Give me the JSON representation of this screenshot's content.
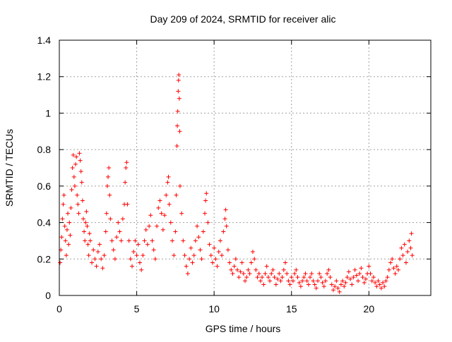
{
  "chart_data": {
    "type": "scatter",
    "title": "Day 209 of 2024, SRMTID for receiver alic",
    "xlabel": "GPS time / hours",
    "ylabel": "SRMTID / TECUs",
    "xlim": [
      0,
      24
    ],
    "ylim": [
      0,
      1.4
    ],
    "grid": true,
    "marker": "+",
    "marker_color": "#ff0000",
    "x_ticks": [
      0,
      5,
      10,
      15,
      20
    ],
    "x_tick_labels": [
      "0",
      "5",
      "10",
      "15",
      "20"
    ],
    "y_ticks": [
      0,
      0.2,
      0.4,
      0.6,
      0.8,
      1.0,
      1.2,
      1.4
    ],
    "y_tick_labels": [
      "0",
      "0.2",
      "0.4",
      "0.6",
      "0.8",
      "1",
      "1.2",
      "1.4"
    ],
    "series": [
      {
        "name": "SRMTID",
        "points": [
          [
            0.05,
            0.18
          ],
          [
            0.1,
            0.25
          ],
          [
            0.15,
            0.32
          ],
          [
            0.2,
            0.42
          ],
          [
            0.25,
            0.5
          ],
          [
            0.3,
            0.55
          ],
          [
            0.35,
            0.38
          ],
          [
            0.4,
            0.3
          ],
          [
            0.45,
            0.22
          ],
          [
            0.5,
            0.36
          ],
          [
            0.55,
            0.45
          ],
          [
            0.6,
            0.28
          ],
          [
            0.65,
            0.4
          ],
          [
            0.7,
            0.33
          ],
          [
            0.75,
            0.48
          ],
          [
            0.8,
            0.58
          ],
          [
            0.85,
            0.7
          ],
          [
            0.9,
            0.77
          ],
          [
            0.95,
            0.65
          ],
          [
            1.0,
            0.6
          ],
          [
            1.05,
            0.72
          ],
          [
            1.1,
            0.76
          ],
          [
            1.15,
            0.55
          ],
          [
            1.2,
            0.5
          ],
          [
            1.25,
            0.45
          ],
          [
            1.3,
            0.78
          ],
          [
            1.35,
            0.74
          ],
          [
            1.4,
            0.68
          ],
          [
            1.45,
            0.62
          ],
          [
            1.5,
            0.52
          ],
          [
            1.55,
            0.42
          ],
          [
            1.6,
            0.35
          ],
          [
            1.65,
            0.3
          ],
          [
            1.7,
            0.4
          ],
          [
            1.75,
            0.46
          ],
          [
            1.8,
            0.38
          ],
          [
            1.85,
            0.28
          ],
          [
            1.9,
            0.22
          ],
          [
            1.95,
            0.34
          ],
          [
            2.0,
            0.3
          ],
          [
            2.1,
            0.18
          ],
          [
            2.2,
            0.25
          ],
          [
            2.3,
            0.2
          ],
          [
            2.4,
            0.16
          ],
          [
            2.5,
            0.24
          ],
          [
            2.6,
            0.28
          ],
          [
            2.7,
            0.2
          ],
          [
            2.8,
            0.15
          ],
          [
            2.9,
            0.22
          ],
          [
            3.0,
            0.35
          ],
          [
            3.05,
            0.45
          ],
          [
            3.1,
            0.6
          ],
          [
            3.15,
            0.65
          ],
          [
            3.2,
            0.7
          ],
          [
            3.25,
            0.55
          ],
          [
            3.3,
            0.42
          ],
          [
            3.4,
            0.3
          ],
          [
            3.5,
            0.25
          ],
          [
            3.6,
            0.2
          ],
          [
            3.7,
            0.32
          ],
          [
            3.8,
            0.4
          ],
          [
            3.9,
            0.35
          ],
          [
            4.0,
            0.3
          ],
          [
            4.1,
            0.42
          ],
          [
            4.2,
            0.5
          ],
          [
            4.25,
            0.62
          ],
          [
            4.3,
            0.7
          ],
          [
            4.35,
            0.73
          ],
          [
            4.4,
            0.5
          ],
          [
            4.5,
            0.3
          ],
          [
            4.6,
            0.2
          ],
          [
            4.7,
            0.16
          ],
          [
            4.8,
            0.24
          ],
          [
            4.9,
            0.3
          ],
          [
            5.0,
            0.22
          ],
          [
            5.1,
            0.28
          ],
          [
            5.2,
            0.18
          ],
          [
            5.3,
            0.14
          ],
          [
            5.4,
            0.22
          ],
          [
            5.5,
            0.3
          ],
          [
            5.6,
            0.36
          ],
          [
            5.7,
            0.28
          ],
          [
            5.8,
            0.38
          ],
          [
            5.9,
            0.44
          ],
          [
            6.0,
            0.3
          ],
          [
            6.1,
            0.25
          ],
          [
            6.2,
            0.2
          ],
          [
            6.3,
            0.38
          ],
          [
            6.4,
            0.48
          ],
          [
            6.5,
            0.52
          ],
          [
            6.6,
            0.45
          ],
          [
            6.7,
            0.36
          ],
          [
            6.8,
            0.44
          ],
          [
            6.9,
            0.55
          ],
          [
            7.0,
            0.62
          ],
          [
            7.05,
            0.65
          ],
          [
            7.1,
            0.5
          ],
          [
            7.2,
            0.4
          ],
          [
            7.3,
            0.3
          ],
          [
            7.4,
            0.22
          ],
          [
            7.5,
            0.35
          ],
          [
            7.55,
            0.55
          ],
          [
            7.6,
            0.82
          ],
          [
            7.62,
            0.93
          ],
          [
            7.65,
            1.01
          ],
          [
            7.68,
            1.12
          ],
          [
            7.7,
            1.18
          ],
          [
            7.72,
            1.21
          ],
          [
            7.75,
            1.08
          ],
          [
            7.78,
            0.9
          ],
          [
            7.8,
            0.6
          ],
          [
            7.9,
            0.45
          ],
          [
            8.0,
            0.3
          ],
          [
            8.1,
            0.22
          ],
          [
            8.2,
            0.16
          ],
          [
            8.3,
            0.12
          ],
          [
            8.4,
            0.2
          ],
          [
            8.5,
            0.26
          ],
          [
            8.6,
            0.18
          ],
          [
            8.7,
            0.22
          ],
          [
            8.8,
            0.3
          ],
          [
            8.9,
            0.38
          ],
          [
            9.0,
            0.32
          ],
          [
            9.1,
            0.25
          ],
          [
            9.2,
            0.2
          ],
          [
            9.3,
            0.35
          ],
          [
            9.4,
            0.45
          ],
          [
            9.45,
            0.52
          ],
          [
            9.5,
            0.56
          ],
          [
            9.6,
            0.4
          ],
          [
            9.7,
            0.28
          ],
          [
            9.8,
            0.22
          ],
          [
            9.9,
            0.18
          ],
          [
            10.0,
            0.26
          ],
          [
            10.1,
            0.2
          ],
          [
            10.2,
            0.16
          ],
          [
            10.3,
            0.24
          ],
          [
            10.4,
            0.3
          ],
          [
            10.5,
            0.22
          ],
          [
            10.6,
            0.35
          ],
          [
            10.7,
            0.42
          ],
          [
            10.75,
            0.47
          ],
          [
            10.8,
            0.38
          ],
          [
            10.9,
            0.25
          ],
          [
            11.0,
            0.18
          ],
          [
            11.1,
            0.14
          ],
          [
            11.2,
            0.12
          ],
          [
            11.3,
            0.16
          ],
          [
            11.4,
            0.2
          ],
          [
            11.5,
            0.14
          ],
          [
            11.6,
            0.1
          ],
          [
            11.7,
            0.13
          ],
          [
            11.8,
            0.18
          ],
          [
            11.9,
            0.12
          ],
          [
            12.0,
            0.08
          ],
          [
            12.1,
            0.1
          ],
          [
            12.2,
            0.14
          ],
          [
            12.3,
            0.12
          ],
          [
            12.4,
            0.18
          ],
          [
            12.5,
            0.24
          ],
          [
            12.6,
            0.2
          ],
          [
            12.7,
            0.14
          ],
          [
            12.8,
            0.1
          ],
          [
            12.9,
            0.12
          ],
          [
            13.0,
            0.08
          ],
          [
            13.1,
            0.1
          ],
          [
            13.2,
            0.06
          ],
          [
            13.3,
            0.12
          ],
          [
            13.4,
            0.16
          ],
          [
            13.5,
            0.1
          ],
          [
            13.6,
            0.08
          ],
          [
            13.7,
            0.12
          ],
          [
            13.8,
            0.14
          ],
          [
            13.9,
            0.1
          ],
          [
            14.0,
            0.06
          ],
          [
            14.1,
            0.09
          ],
          [
            14.2,
            0.12
          ],
          [
            14.3,
            0.08
          ],
          [
            14.4,
            0.1
          ],
          [
            14.5,
            0.14
          ],
          [
            14.6,
            0.18
          ],
          [
            14.7,
            0.12
          ],
          [
            14.8,
            0.08
          ],
          [
            14.9,
            0.06
          ],
          [
            15.0,
            0.1
          ],
          [
            15.1,
            0.08
          ],
          [
            15.2,
            0.12
          ],
          [
            15.3,
            0.14
          ],
          [
            15.4,
            0.1
          ],
          [
            15.5,
            0.07
          ],
          [
            15.6,
            0.05
          ],
          [
            15.7,
            0.08
          ],
          [
            15.8,
            0.1
          ],
          [
            15.9,
            0.12
          ],
          [
            16.0,
            0.08
          ],
          [
            16.1,
            0.06
          ],
          [
            16.2,
            0.1
          ],
          [
            16.3,
            0.12
          ],
          [
            16.4,
            0.08
          ],
          [
            16.5,
            0.06
          ],
          [
            16.6,
            0.04
          ],
          [
            16.7,
            0.08
          ],
          [
            16.8,
            0.12
          ],
          [
            16.9,
            0.1
          ],
          [
            17.0,
            0.07
          ],
          [
            17.1,
            0.05
          ],
          [
            17.2,
            0.08
          ],
          [
            17.3,
            0.12
          ],
          [
            17.4,
            0.14
          ],
          [
            17.5,
            0.1
          ],
          [
            17.6,
            0.06
          ],
          [
            17.7,
            0.03
          ],
          [
            17.8,
            0.05
          ],
          [
            17.9,
            0.08
          ],
          [
            18.0,
            0.04
          ],
          [
            18.1,
            0.02
          ],
          [
            18.2,
            0.06
          ],
          [
            18.3,
            0.08
          ],
          [
            18.4,
            0.05
          ],
          [
            18.5,
            0.07
          ],
          [
            18.6,
            0.1
          ],
          [
            18.7,
            0.13
          ],
          [
            18.8,
            0.09
          ],
          [
            18.9,
            0.06
          ],
          [
            19.0,
            0.1
          ],
          [
            19.1,
            0.14
          ],
          [
            19.2,
            0.11
          ],
          [
            19.3,
            0.08
          ],
          [
            19.4,
            0.12
          ],
          [
            19.5,
            0.15
          ],
          [
            19.6,
            0.1
          ],
          [
            19.7,
            0.07
          ],
          [
            19.8,
            0.09
          ],
          [
            19.9,
            0.12
          ],
          [
            20.0,
            0.16
          ],
          [
            20.1,
            0.12
          ],
          [
            20.2,
            0.08
          ],
          [
            20.3,
            0.1
          ],
          [
            20.4,
            0.07
          ],
          [
            20.5,
            0.05
          ],
          [
            20.6,
            0.08
          ],
          [
            20.7,
            0.06
          ],
          [
            20.8,
            0.04
          ],
          [
            20.9,
            0.07
          ],
          [
            21.0,
            0.05
          ],
          [
            21.1,
            0.08
          ],
          [
            21.2,
            0.1
          ],
          [
            21.3,
            0.14
          ],
          [
            21.4,
            0.18
          ],
          [
            21.5,
            0.2
          ],
          [
            21.6,
            0.15
          ],
          [
            21.7,
            0.12
          ],
          [
            21.8,
            0.16
          ],
          [
            21.9,
            0.14
          ],
          [
            22.0,
            0.2
          ],
          [
            22.1,
            0.26
          ],
          [
            22.2,
            0.22
          ],
          [
            22.3,
            0.28
          ],
          [
            22.4,
            0.18
          ],
          [
            22.5,
            0.24
          ],
          [
            22.6,
            0.3
          ],
          [
            22.7,
            0.26
          ],
          [
            22.75,
            0.34
          ],
          [
            22.8,
            0.22
          ]
        ]
      }
    ]
  }
}
